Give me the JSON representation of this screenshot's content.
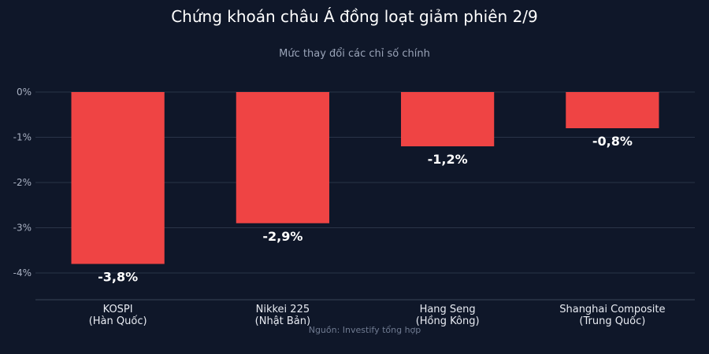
{
  "chart_data": {
    "type": "bar",
    "title": "Chứng khoán châu Á đồng loạt giảm phiên 2/9",
    "subtitle": "Mức thay đổi các chỉ số chính",
    "categories": [
      [
        "KOSPI",
        "(Hàn Quốc)"
      ],
      [
        "Nikkei 225",
        "(Nhật Bản)"
      ],
      [
        "Hang Seng",
        "(Hồng Kông)"
      ],
      [
        "Shanghai Composite",
        "(Trung Quốc)"
      ]
    ],
    "values": [
      -3.8,
      -2.9,
      -1.2,
      -0.8
    ],
    "data_labels": [
      "-3,8%",
      "-2,9%",
      "-1,2%",
      "-0,8%"
    ],
    "yticks": [
      0,
      -1,
      -2,
      -3,
      -4
    ],
    "ytick_labels": [
      "0%",
      "-1%",
      "-2%",
      "-3%",
      "-4%"
    ],
    "ylim": [
      -4.6,
      0
    ],
    "grid": true,
    "bar_color": "#ef4444",
    "source": "Nguồn: Investify tổng hợp"
  }
}
